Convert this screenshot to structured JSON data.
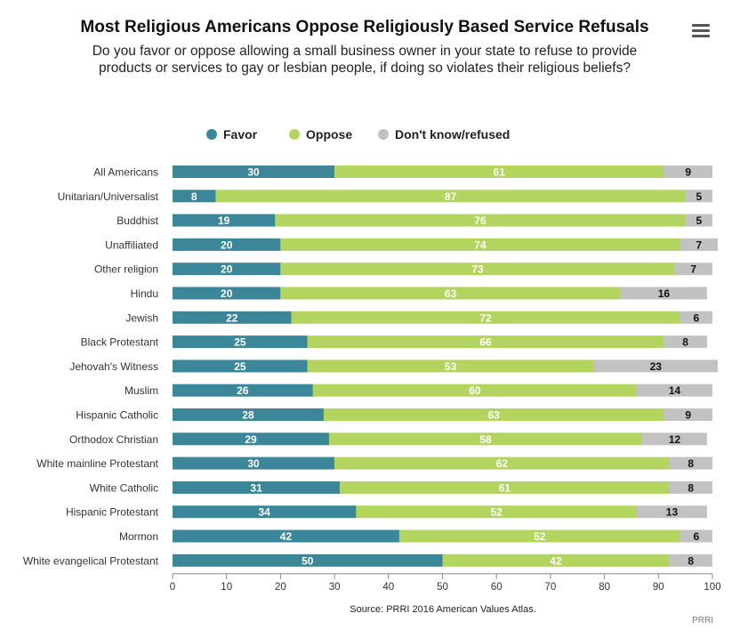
{
  "header": {
    "title": "Most Religious Americans Oppose Religiously Based Service Refusals",
    "subtitle_line1": "Do you favor or oppose allowing a small business owner in your state to refuse to provide",
    "subtitle_line2": "products or services to gay or lesbian people, if doing so violates their religious beliefs?"
  },
  "menu": {
    "icon": "hamburger-menu-icon"
  },
  "footer": {
    "source": "Source: PRRI 2016 American Values Atlas.",
    "credit": "PRRI"
  },
  "colors": {
    "favor": "#3b8799",
    "oppose": "#b3d45f",
    "dont_know": "#c2c2c2",
    "axis": "#888888",
    "text": "#333333"
  },
  "chart_data": {
    "type": "bar",
    "orientation": "horizontal",
    "stacked": true,
    "title": "Most Religious Americans Oppose Religiously Based Service Refusals",
    "xlabel": "",
    "ylabel": "",
    "xlim": [
      0,
      100
    ],
    "xticks": [
      0,
      10,
      20,
      30,
      40,
      50,
      60,
      70,
      80,
      90,
      100
    ],
    "legend_position": "top",
    "categories": [
      "All Americans",
      "Unitarian/Universalist",
      "Buddhist",
      "Unaffiliated",
      "Other religion",
      "Hindu",
      "Jewish",
      "Black Protestant",
      "Jehovah's Witness",
      "Muslim",
      "Hispanic Catholic",
      "Orthodox Christian",
      "White mainline Protestant",
      "White Catholic",
      "Hispanic Protestant",
      "Mormon",
      "White evangelical Protestant"
    ],
    "series": [
      {
        "name": "Favor",
        "values": [
          30,
          8,
          19,
          20,
          20,
          20,
          22,
          25,
          25,
          26,
          28,
          29,
          30,
          31,
          34,
          42,
          50
        ]
      },
      {
        "name": "Oppose",
        "values": [
          61,
          87,
          76,
          74,
          73,
          63,
          72,
          66,
          53,
          60,
          63,
          58,
          62,
          61,
          52,
          52,
          42
        ]
      },
      {
        "name": "Don't know/refused",
        "values": [
          9,
          5,
          5,
          7,
          7,
          16,
          6,
          8,
          23,
          14,
          9,
          12,
          8,
          8,
          13,
          6,
          8
        ]
      }
    ]
  }
}
